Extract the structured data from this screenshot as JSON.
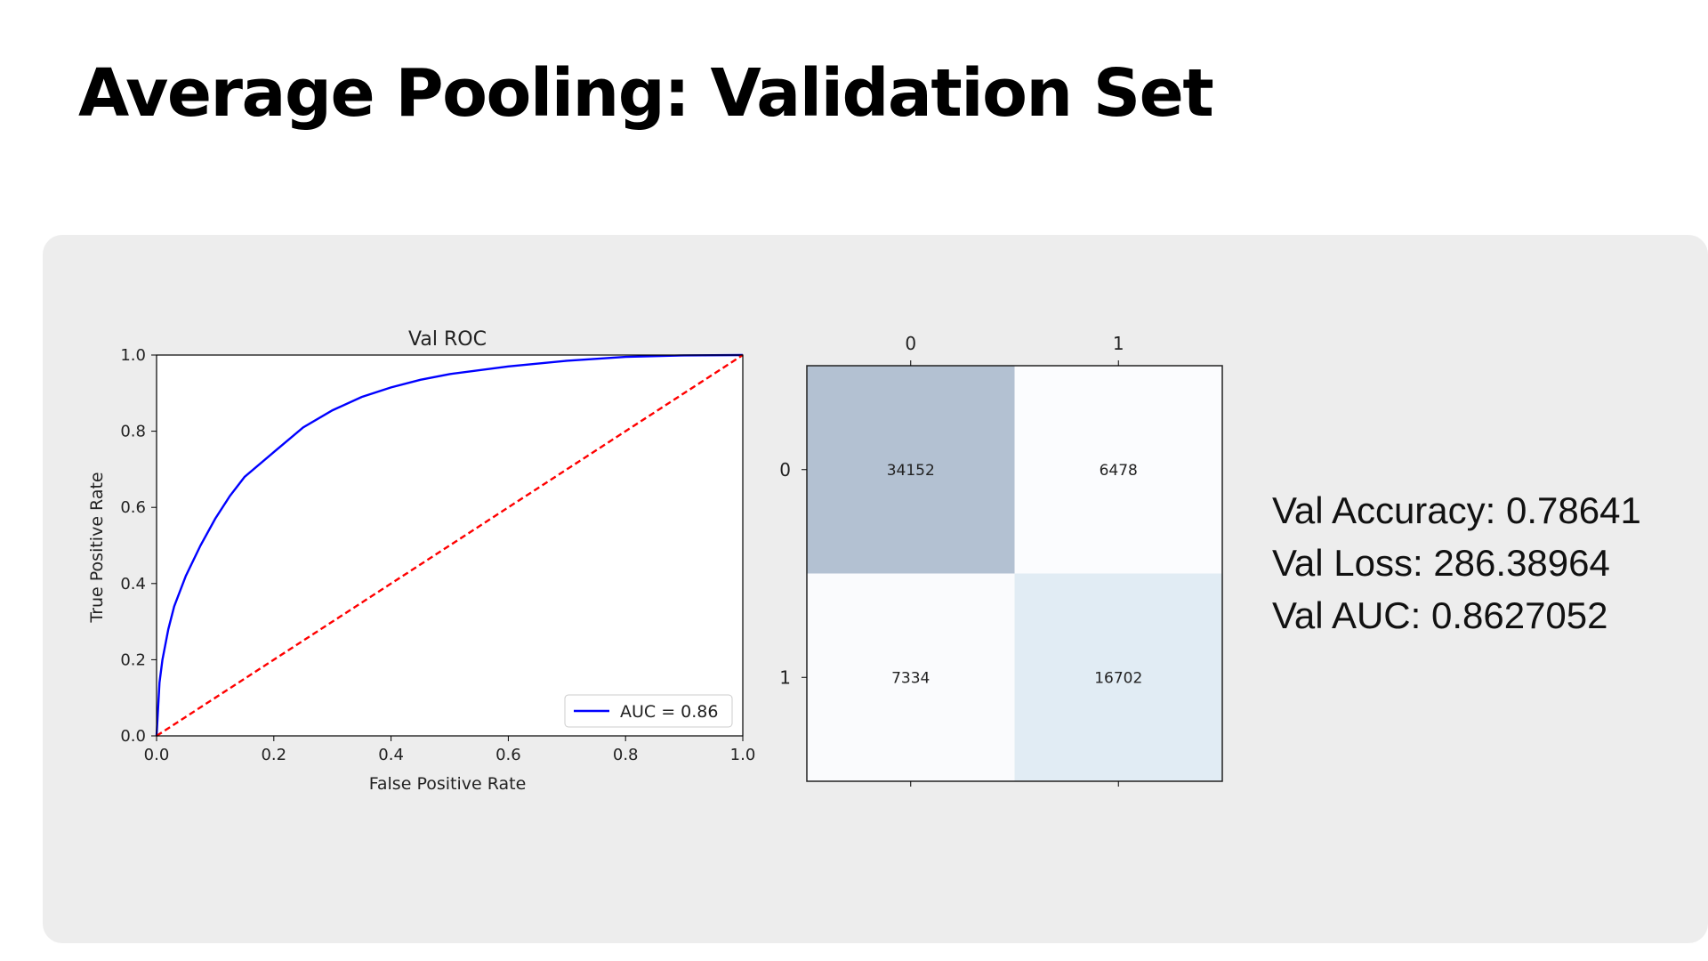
{
  "page": {
    "title": "Average Pooling: Validation Set"
  },
  "metrics": [
    {
      "label": "Val Accuracy",
      "value": "0.78641"
    },
    {
      "label": "Val Loss",
      "value": "286.38964"
    },
    {
      "label": "Val AUC",
      "value": "0.8627052"
    }
  ],
  "chart_data": [
    {
      "type": "line",
      "title": "Val ROC",
      "xlabel": "False Positive Rate",
      "ylabel": "True Positive Rate",
      "xlim": [
        0,
        1
      ],
      "ylim": [
        0,
        1
      ],
      "xticks": [
        "0.0",
        "0.2",
        "0.4",
        "0.6",
        "0.8",
        "1.0"
      ],
      "yticks": [
        "0.0",
        "0.2",
        "0.4",
        "0.6",
        "0.8",
        "1.0"
      ],
      "grid": false,
      "legend_position": "lower-right",
      "series": [
        {
          "name": "AUC = 0.86",
          "color": "#0000ff",
          "style": "solid",
          "x": [
            0,
            0.005,
            0.01,
            0.02,
            0.03,
            0.05,
            0.075,
            0.1,
            0.125,
            0.15,
            0.2,
            0.25,
            0.3,
            0.35,
            0.4,
            0.45,
            0.5,
            0.6,
            0.7,
            0.8,
            0.9,
            1.0
          ],
          "y": [
            0,
            0.14,
            0.2,
            0.28,
            0.34,
            0.42,
            0.5,
            0.57,
            0.63,
            0.68,
            0.745,
            0.81,
            0.855,
            0.89,
            0.915,
            0.935,
            0.95,
            0.97,
            0.985,
            0.995,
            0.999,
            1.0
          ]
        },
        {
          "color": "#ff0000",
          "style": "dashed",
          "x": [
            0,
            1
          ],
          "y": [
            0,
            1
          ]
        }
      ]
    },
    {
      "type": "heatmap",
      "x_categories": [
        "0",
        "1"
      ],
      "y_categories": [
        "0",
        "1"
      ],
      "values": [
        [
          34152,
          6478
        ],
        [
          7334,
          16702
        ]
      ],
      "colormap": [
        "#fbfcfe",
        "#b3c1d2"
      ]
    }
  ]
}
